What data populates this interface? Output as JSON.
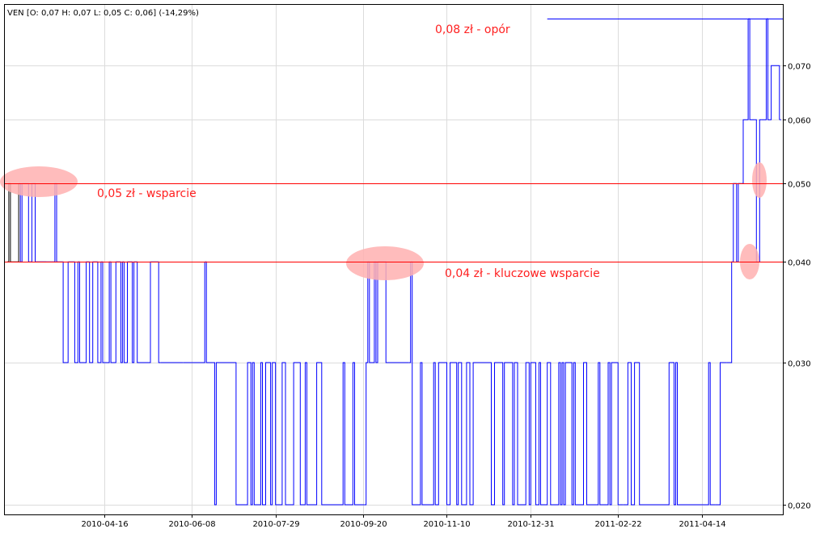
{
  "header": {
    "text": "VEN [O: 0,07  H: 0,07  L: 0,05  C: 0,06] (-14,29%)"
  },
  "chart_data": {
    "type": "line",
    "title": "",
    "ticker": "VEN",
    "ohlc": {
      "open": 0.07,
      "high": 0.07,
      "low": 0.05,
      "close": 0.06,
      "change_pct": -14.29
    },
    "y_scale": "log",
    "ylim": [
      0.0195,
      0.085
    ],
    "y_ticks": [
      0.02,
      0.03,
      0.04,
      0.05,
      0.06,
      0.07
    ],
    "y_tick_labels": [
      "0,020",
      "0,030",
      "0,040",
      "0,050",
      "0,060",
      "0,070"
    ],
    "x_ticks": [
      "2010-04-16",
      "2010-06-08",
      "2010-07-29",
      "2010-09-20",
      "2010-11-10",
      "2010-12-31",
      "2011-02-22",
      "2011-04-14"
    ],
    "grid": true,
    "series_color": "#0000ff",
    "regimes": [
      {
        "from": "2010-02-16",
        "to": "2010-02-23",
        "levels": [
          0.04,
          0.05
        ],
        "mode": "oscillate",
        "color": "#000000"
      },
      {
        "from": "2010-02-24",
        "to": "2010-03-05",
        "levels": [
          0.04,
          0.05
        ],
        "mode": "oscillate"
      },
      {
        "from": "2010-03-08",
        "to": "2010-03-12",
        "levels": [
          0.04
        ],
        "mode": "flat"
      },
      {
        "from": "2010-03-15",
        "to": "2010-03-18",
        "levels": [
          0.04,
          0.05
        ],
        "mode": "oscillate"
      },
      {
        "from": "2010-03-19",
        "to": "2010-05-20",
        "levels": [
          0.03,
          0.04
        ],
        "mode": "oscillate"
      },
      {
        "from": "2010-05-21",
        "to": "2010-06-03",
        "levels": [
          0.03
        ],
        "mode": "flat"
      },
      {
        "from": "2010-06-04",
        "to": "2010-06-16",
        "levels": [
          0.03,
          0.04
        ],
        "mode": "sparse"
      },
      {
        "from": "2010-06-17",
        "to": "2010-06-21",
        "levels": [
          0.03
        ],
        "mode": "flat"
      },
      {
        "from": "2010-06-22",
        "to": "2010-09-21",
        "levels": [
          0.02,
          0.03
        ],
        "mode": "oscillate"
      },
      {
        "from": "2010-09-22",
        "to": "2010-10-01",
        "levels": [
          0.03,
          0.04
        ],
        "mode": "oscillate"
      },
      {
        "from": "2010-10-04",
        "to": "2010-10-18",
        "levels": [
          0.03
        ],
        "mode": "flat"
      },
      {
        "from": "2010-10-19",
        "to": "2010-10-19",
        "levels": [
          0.04
        ],
        "mode": "flat"
      },
      {
        "from": "2010-10-20",
        "to": "2011-02-25",
        "levels": [
          0.02,
          0.03
        ],
        "mode": "oscillate"
      },
      {
        "from": "2011-02-28",
        "to": "2011-04-22",
        "levels": [
          0.02,
          0.03
        ],
        "mode": "sparse"
      },
      {
        "from": "2011-04-25",
        "to": "2011-04-29",
        "levels": [
          0.03
        ],
        "mode": "flat"
      },
      {
        "from": "2011-05-02",
        "to": "2011-05-05",
        "levels": [
          0.04,
          0.05
        ],
        "mode": "oscillate"
      },
      {
        "from": "2011-05-06",
        "to": "2011-05-11",
        "levels": [
          0.05,
          0.06
        ],
        "mode": "oscillate"
      },
      {
        "from": "2011-05-12",
        "to": "2011-05-12",
        "levels": [
          0.08
        ],
        "mode": "flat"
      },
      {
        "from": "2011-05-13",
        "to": "2011-05-16",
        "levels": [
          0.05,
          0.06
        ],
        "mode": "oscillate"
      },
      {
        "from": "2011-05-17",
        "to": "2011-05-18",
        "levels": [
          0.04,
          0.05
        ],
        "mode": "oscillate"
      },
      {
        "from": "2011-05-19",
        "to": "2011-05-20",
        "levels": [
          0.06
        ],
        "mode": "flat"
      },
      {
        "from": "2011-05-23",
        "to": "2011-05-23",
        "levels": [
          0.08
        ],
        "mode": "flat"
      },
      {
        "from": "2011-05-24",
        "to": "2011-05-31",
        "levels": [
          0.06,
          0.07
        ],
        "mode": "oscillate"
      },
      {
        "from": "2011-06-01",
        "to": "2011-06-01",
        "levels": [
          0.06
        ],
        "mode": "flat"
      }
    ],
    "annotations": [
      {
        "label": "0,08 zł - opór",
        "level": 0.08,
        "from": "2011-01-10"
      },
      {
        "label": "0,05 zł - wsparcie",
        "level": 0.05
      },
      {
        "label": "0,04 zł - kluczowe wsparcie",
        "level": 0.04
      }
    ],
    "annotation_color": "#ff0000",
    "highlight_color": "#ffb0b0"
  }
}
